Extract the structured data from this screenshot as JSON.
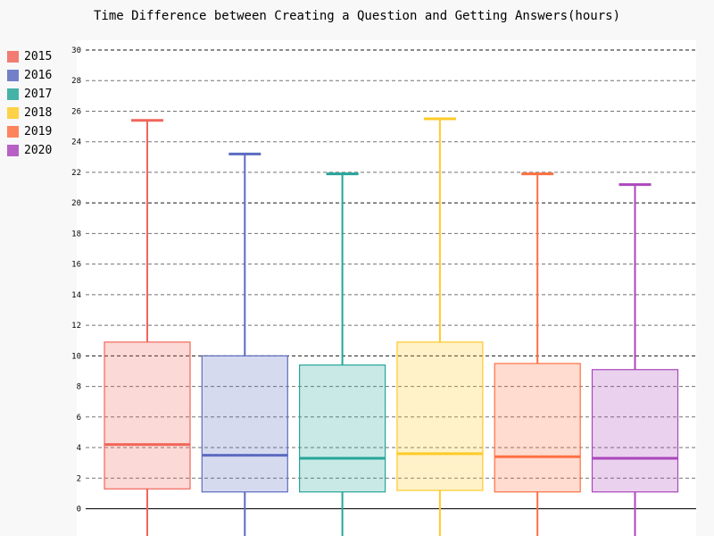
{
  "chart_data": {
    "type": "box",
    "title": "Time Difference between Creating a Question and Getting Answers(hours)",
    "xlabel": "",
    "ylabel": "",
    "ylim": [
      0,
      30
    ],
    "yticks": [
      "0",
      "2",
      "4",
      "6",
      "8",
      "10",
      "12",
      "14",
      "16",
      "18",
      "20",
      "22",
      "24",
      "26",
      "28",
      "30"
    ],
    "legend_position": "left",
    "grid": true,
    "series": [
      {
        "name": "2015",
        "color": "#f1665a",
        "q1": 1.3,
        "median": 4.2,
        "q3": 10.9,
        "whisker_high": 25.4,
        "whisker_low": "below 0"
      },
      {
        "name": "2016",
        "color": "#5c6bc0",
        "q1": 1.1,
        "median": 3.5,
        "q3": 10.0,
        "whisker_high": 23.2,
        "whisker_low": "below 0"
      },
      {
        "name": "2017",
        "color": "#26a69a",
        "q1": 1.1,
        "median": 3.3,
        "q3": 9.4,
        "whisker_high": 21.9,
        "whisker_low": "below 0"
      },
      {
        "name": "2018",
        "color": "#ffca28",
        "q1": 1.2,
        "median": 3.6,
        "q3": 10.9,
        "whisker_high": 25.5,
        "whisker_low": "below 0"
      },
      {
        "name": "2019",
        "color": "#ff7043",
        "q1": 1.1,
        "median": 3.4,
        "q3": 9.5,
        "whisker_high": 21.9,
        "whisker_low": "below 0"
      },
      {
        "name": "2020",
        "color": "#ab47bc",
        "q1": 1.1,
        "median": 3.3,
        "q3": 9.1,
        "whisker_high": 21.2,
        "whisker_low": "below 0"
      }
    ]
  }
}
